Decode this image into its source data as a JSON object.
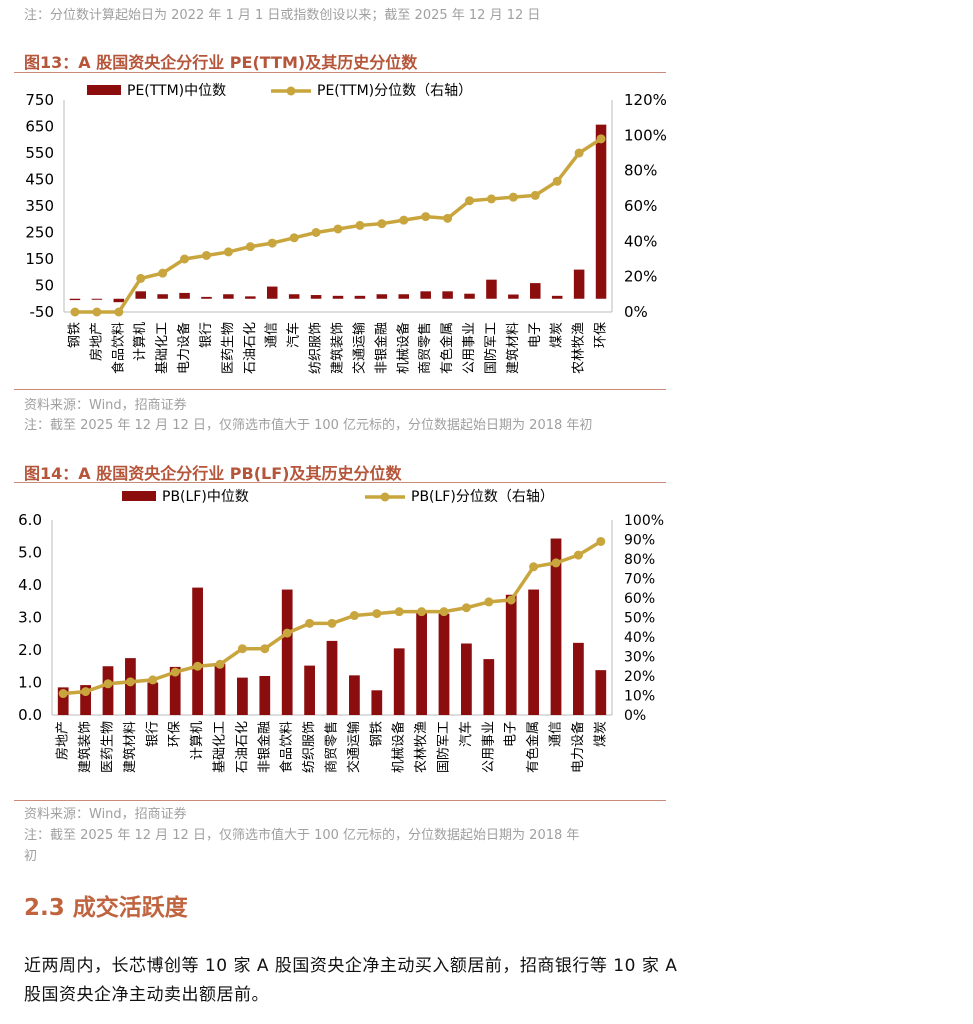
{
  "top_note": "注：分位数计算起始日为 2022 年 1 月 1 日或指数创设以来；截至 2025 年 12 月 12 日",
  "colors": {
    "bar": "#8b0d0d",
    "line": "#c9a53e",
    "title": "#b5553a",
    "rule": "#c98a78"
  },
  "fig13": {
    "title": "图13：A 股国资央企分行业 PE(TTM)及其历史分位数",
    "source": "资料来源：Wind，招商证券",
    "note": "注：截至 2025 年 12 月 12 日，仅筛选市值大于 100 亿元标的，分位数据起始日期为 2018 年初"
  },
  "fig14": {
    "title": "图14：A 股国资央企分行业 PB(LF)及其历史分位数",
    "source": "资料来源：Wind，招商证券",
    "note_line1": "注：截至 2025 年 12 月 12 日，仅筛选市值大于 100 亿元标的，分位数据起始日期为 2018 年",
    "note_line2": "初"
  },
  "section": {
    "title": "2.3 成交活跃度"
  },
  "paragraph": "近两周内，长芯博创等 10 家 A 股国资央企净主动买入额居前，招商银行等 10 家 A 股国资央企净主动卖出额居前。",
  "chart_data": [
    {
      "type": "bar",
      "title": "A 股国资央企分行业 PE(TTM)及其历史分位数",
      "categories": [
        "钢铁",
        "房地产",
        "食品饮料",
        "计算机",
        "基础化工",
        "电力设备",
        "银行",
        "医药生物",
        "石油石化",
        "通信",
        "汽车",
        "纺织服饰",
        "建筑装饰",
        "交通运输",
        "非银金融",
        "机械设备",
        "商贸零售",
        "有色金属",
        "公用事业",
        "国防军工",
        "建筑材料",
        "电子",
        "煤炭",
        "农林牧渔",
        "环保"
      ],
      "series": [
        {
          "name": "PE(TTM)中位数",
          "axis": "left",
          "type": "bar",
          "values": [
            -5,
            -1,
            -13,
            28,
            17,
            22,
            7,
            17,
            9,
            46,
            17,
            14,
            11,
            11,
            17,
            17,
            28,
            28,
            19,
            72,
            16,
            59,
            11,
            110,
            657
          ]
        },
        {
          "name": "PE(TTM)分位数（右轴）",
          "axis": "right",
          "type": "line",
          "values": [
            0,
            0,
            0,
            19,
            22,
            30,
            32,
            34,
            37,
            39,
            42,
            45,
            47,
            49,
            50,
            52,
            54,
            53,
            63,
            64,
            65,
            66,
            74,
            90,
            98
          ]
        }
      ],
      "left_ticks": [
        "750",
        "650",
        "550",
        "450",
        "350",
        "250",
        "150",
        "50",
        "-50"
      ],
      "right_ticks": [
        "120%",
        "100%",
        "80%",
        "60%",
        "40%",
        "20%",
        "0%"
      ],
      "ylim_left": [
        -50,
        750
      ],
      "ylim_right": [
        0,
        120
      ]
    },
    {
      "type": "bar",
      "title": "A 股国资央企分行业 PB(LF)及其历史分位数",
      "categories": [
        "房地产",
        "建筑装饰",
        "医药生物",
        "建筑材料",
        "银行",
        "环保",
        "计算机",
        "基础化工",
        "石油石化",
        "非银金融",
        "食品饮料",
        "纺织服饰",
        "商贸零售",
        "交通运输",
        "钢铁",
        "机械设备",
        "农林牧渔",
        "国防军工",
        "汽车",
        "公用事业",
        "电子",
        "有色金属",
        "通信",
        "电力设备",
        "煤炭"
      ],
      "series": [
        {
          "name": "PB(LF)中位数",
          "axis": "left",
          "type": "bar",
          "values": [
            0.85,
            0.92,
            1.5,
            1.75,
            1.0,
            1.48,
            3.92,
            1.58,
            1.15,
            1.2,
            3.86,
            1.52,
            2.28,
            1.22,
            0.76,
            2.05,
            3.15,
            3.12,
            2.2,
            1.72,
            3.7,
            3.86,
            5.43,
            2.22,
            1.38
          ]
        },
        {
          "name": "PB(LF)分位数（右轴）",
          "axis": "right",
          "type": "line",
          "values": [
            11,
            12,
            16,
            17,
            18,
            22,
            25,
            26,
            34,
            34,
            42,
            47,
            47,
            51,
            52,
            53,
            53,
            53,
            55,
            58,
            59,
            76,
            78,
            82,
            89
          ]
        }
      ],
      "left_ticks": [
        "6.0",
        "5.0",
        "4.0",
        "3.0",
        "2.0",
        "1.0",
        "0.0"
      ],
      "right_ticks": [
        "100%",
        "90%",
        "80%",
        "70%",
        "60%",
        "50%",
        "40%",
        "30%",
        "20%",
        "10%",
        "0%"
      ],
      "ylim_left": [
        0,
        6
      ],
      "ylim_right": [
        0,
        100
      ]
    }
  ]
}
